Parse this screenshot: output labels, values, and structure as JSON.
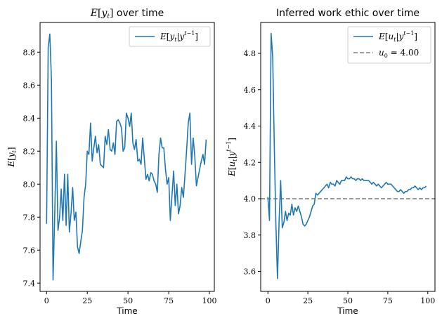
{
  "chart_data": [
    {
      "type": "line",
      "title": "E[y_t] over time",
      "xlabel": "Time",
      "ylabel": "E[y_t]",
      "xlim": [
        -4,
        103
      ],
      "ylim": [
        7.35,
        8.98
      ],
      "xticks": [
        0,
        25,
        50,
        75,
        100
      ],
      "xtick_labels": [
        "0",
        "25",
        "50",
        "75",
        "100"
      ],
      "yticks": [
        7.4,
        7.6,
        7.8,
        8.0,
        8.2,
        8.4,
        8.6,
        8.8
      ],
      "ytick_labels": [
        "7.4",
        "7.6",
        "7.8",
        "8.0",
        "8.2",
        "8.4",
        "8.6",
        "8.8"
      ],
      "grid": false,
      "legend_position": "top-right",
      "series": [
        {
          "name": "E[y_t|y^{t-1}]",
          "color": "#1f77b4",
          "x": [
            0,
            1,
            2,
            3,
            4,
            5,
            6,
            7,
            8,
            9,
            10,
            11,
            12,
            13,
            14,
            15,
            16,
            17,
            18,
            19,
            20,
            21,
            22,
            23,
            24,
            25,
            26,
            27,
            28,
            29,
            30,
            31,
            32,
            33,
            34,
            35,
            36,
            37,
            38,
            39,
            40,
            41,
            42,
            43,
            44,
            45,
            46,
            47,
            48,
            49,
            50,
            51,
            52,
            53,
            54,
            55,
            56,
            57,
            58,
            59,
            60,
            61,
            62,
            63,
            64,
            65,
            66,
            67,
            68,
            69,
            70,
            71,
            72,
            73,
            74,
            75,
            76,
            77,
            78,
            79,
            80,
            81,
            82,
            83,
            84,
            85,
            86,
            87,
            88,
            89,
            90,
            91,
            92,
            93,
            94,
            95,
            96,
            97,
            98
          ],
          "values": [
            7.76,
            8.83,
            8.91,
            8.63,
            7.42,
            7.82,
            8.26,
            7.72,
            7.8,
            7.97,
            7.78,
            8.06,
            7.75,
            8.06,
            7.71,
            7.82,
            7.98,
            7.78,
            7.83,
            7.62,
            7.58,
            7.65,
            7.72,
            7.92,
            8.0,
            8.2,
            8.18,
            8.37,
            8.14,
            8.22,
            8.29,
            8.19,
            8.24,
            8.12,
            8.11,
            8.1,
            8.29,
            8.24,
            8.33,
            8.21,
            8.2,
            8.25,
            8.18,
            8.38,
            8.39,
            8.37,
            8.34,
            8.2,
            8.22,
            8.43,
            8.4,
            8.35,
            8.43,
            8.25,
            8.21,
            8.27,
            8.14,
            8.15,
            8.12,
            8.28,
            8.16,
            8.03,
            8.06,
            8.02,
            8.07,
            8.06,
            8.02,
            8.0,
            7.95,
            8.18,
            8.28,
            8.22,
            8.22,
            8.09,
            8.0,
            8.04,
            7.78,
            7.93,
            8.08,
            7.87,
            8.0,
            7.82,
            7.87,
            7.98,
            7.92,
            8.06,
            8.21,
            8.37,
            8.43,
            8.12,
            8.28,
            8.17,
            7.99,
            8.04,
            8.09,
            8.14,
            8.18,
            8.12,
            8.27
          ]
        }
      ]
    },
    {
      "type": "line",
      "title": "Inferred work ethic over time",
      "xlabel": "Time",
      "ylabel": "E[u_t|y^{t-1}]",
      "xlim": [
        -4.5,
        104.5
      ],
      "ylim": [
        3.49,
        4.97
      ],
      "xticks": [
        0,
        25,
        50,
        75,
        100
      ],
      "xtick_labels": [
        "0",
        "25",
        "50",
        "75",
        "100"
      ],
      "yticks": [
        3.6,
        3.8,
        4.0,
        4.2,
        4.4,
        4.6,
        4.8
      ],
      "ytick_labels": [
        "3.6",
        "3.8",
        "4.0",
        "4.2",
        "4.4",
        "4.6",
        "4.8"
      ],
      "grid": false,
      "legend_position": "top-right",
      "reference_line": {
        "y": 4.0,
        "label": "u_0 = 4.00",
        "color": "#808080",
        "style": "dashed"
      },
      "series": [
        {
          "name": "E[u_t|y^{t-1}]",
          "color": "#1f77b4",
          "x": [
            0,
            1,
            2,
            3,
            4,
            5,
            6,
            7,
            8,
            9,
            10,
            11,
            12,
            13,
            14,
            15,
            16,
            17,
            18,
            19,
            20,
            21,
            22,
            23,
            24,
            25,
            26,
            27,
            28,
            29,
            30,
            31,
            32,
            33,
            34,
            35,
            36,
            37,
            38,
            39,
            40,
            41,
            42,
            43,
            44,
            45,
            46,
            47,
            48,
            49,
            50,
            51,
            52,
            53,
            54,
            55,
            56,
            57,
            58,
            59,
            60,
            61,
            62,
            63,
            64,
            65,
            66,
            67,
            68,
            69,
            70,
            71,
            72,
            73,
            74,
            75,
            76,
            77,
            78,
            79,
            80,
            81,
            82,
            83,
            84,
            85,
            86,
            87,
            88,
            89,
            90,
            91,
            92,
            93,
            94,
            95,
            96,
            97,
            98,
            99
          ],
          "values": [
            4.01,
            3.88,
            4.91,
            4.78,
            4.3,
            3.86,
            3.56,
            3.88,
            4.1,
            3.84,
            3.87,
            3.93,
            3.88,
            3.92,
            3.91,
            3.97,
            3.91,
            3.95,
            3.93,
            3.96,
            3.93,
            3.9,
            3.86,
            3.85,
            3.86,
            3.88,
            3.9,
            3.93,
            3.96,
            3.97,
            4.03,
            4.02,
            4.03,
            4.04,
            4.05,
            4.06,
            4.07,
            4.08,
            4.06,
            4.09,
            4.08,
            4.08,
            4.07,
            4.1,
            4.09,
            4.08,
            4.1,
            4.1,
            4.1,
            4.12,
            4.11,
            4.11,
            4.12,
            4.11,
            4.11,
            4.1,
            4.11,
            4.11,
            4.1,
            4.11,
            4.1,
            4.1,
            4.1,
            4.1,
            4.09,
            4.08,
            4.09,
            4.08,
            4.07,
            4.08,
            4.07,
            4.06,
            4.07,
            4.08,
            4.09,
            4.08,
            4.08,
            4.08,
            4.07,
            4.06,
            4.05,
            4.04,
            4.04,
            4.05,
            4.04,
            4.03,
            4.04,
            4.04,
            4.05,
            4.05,
            4.06,
            4.06,
            4.07,
            4.06,
            4.05,
            4.06,
            4.05,
            4.06,
            4.06,
            4.07
          ]
        }
      ]
    }
  ]
}
